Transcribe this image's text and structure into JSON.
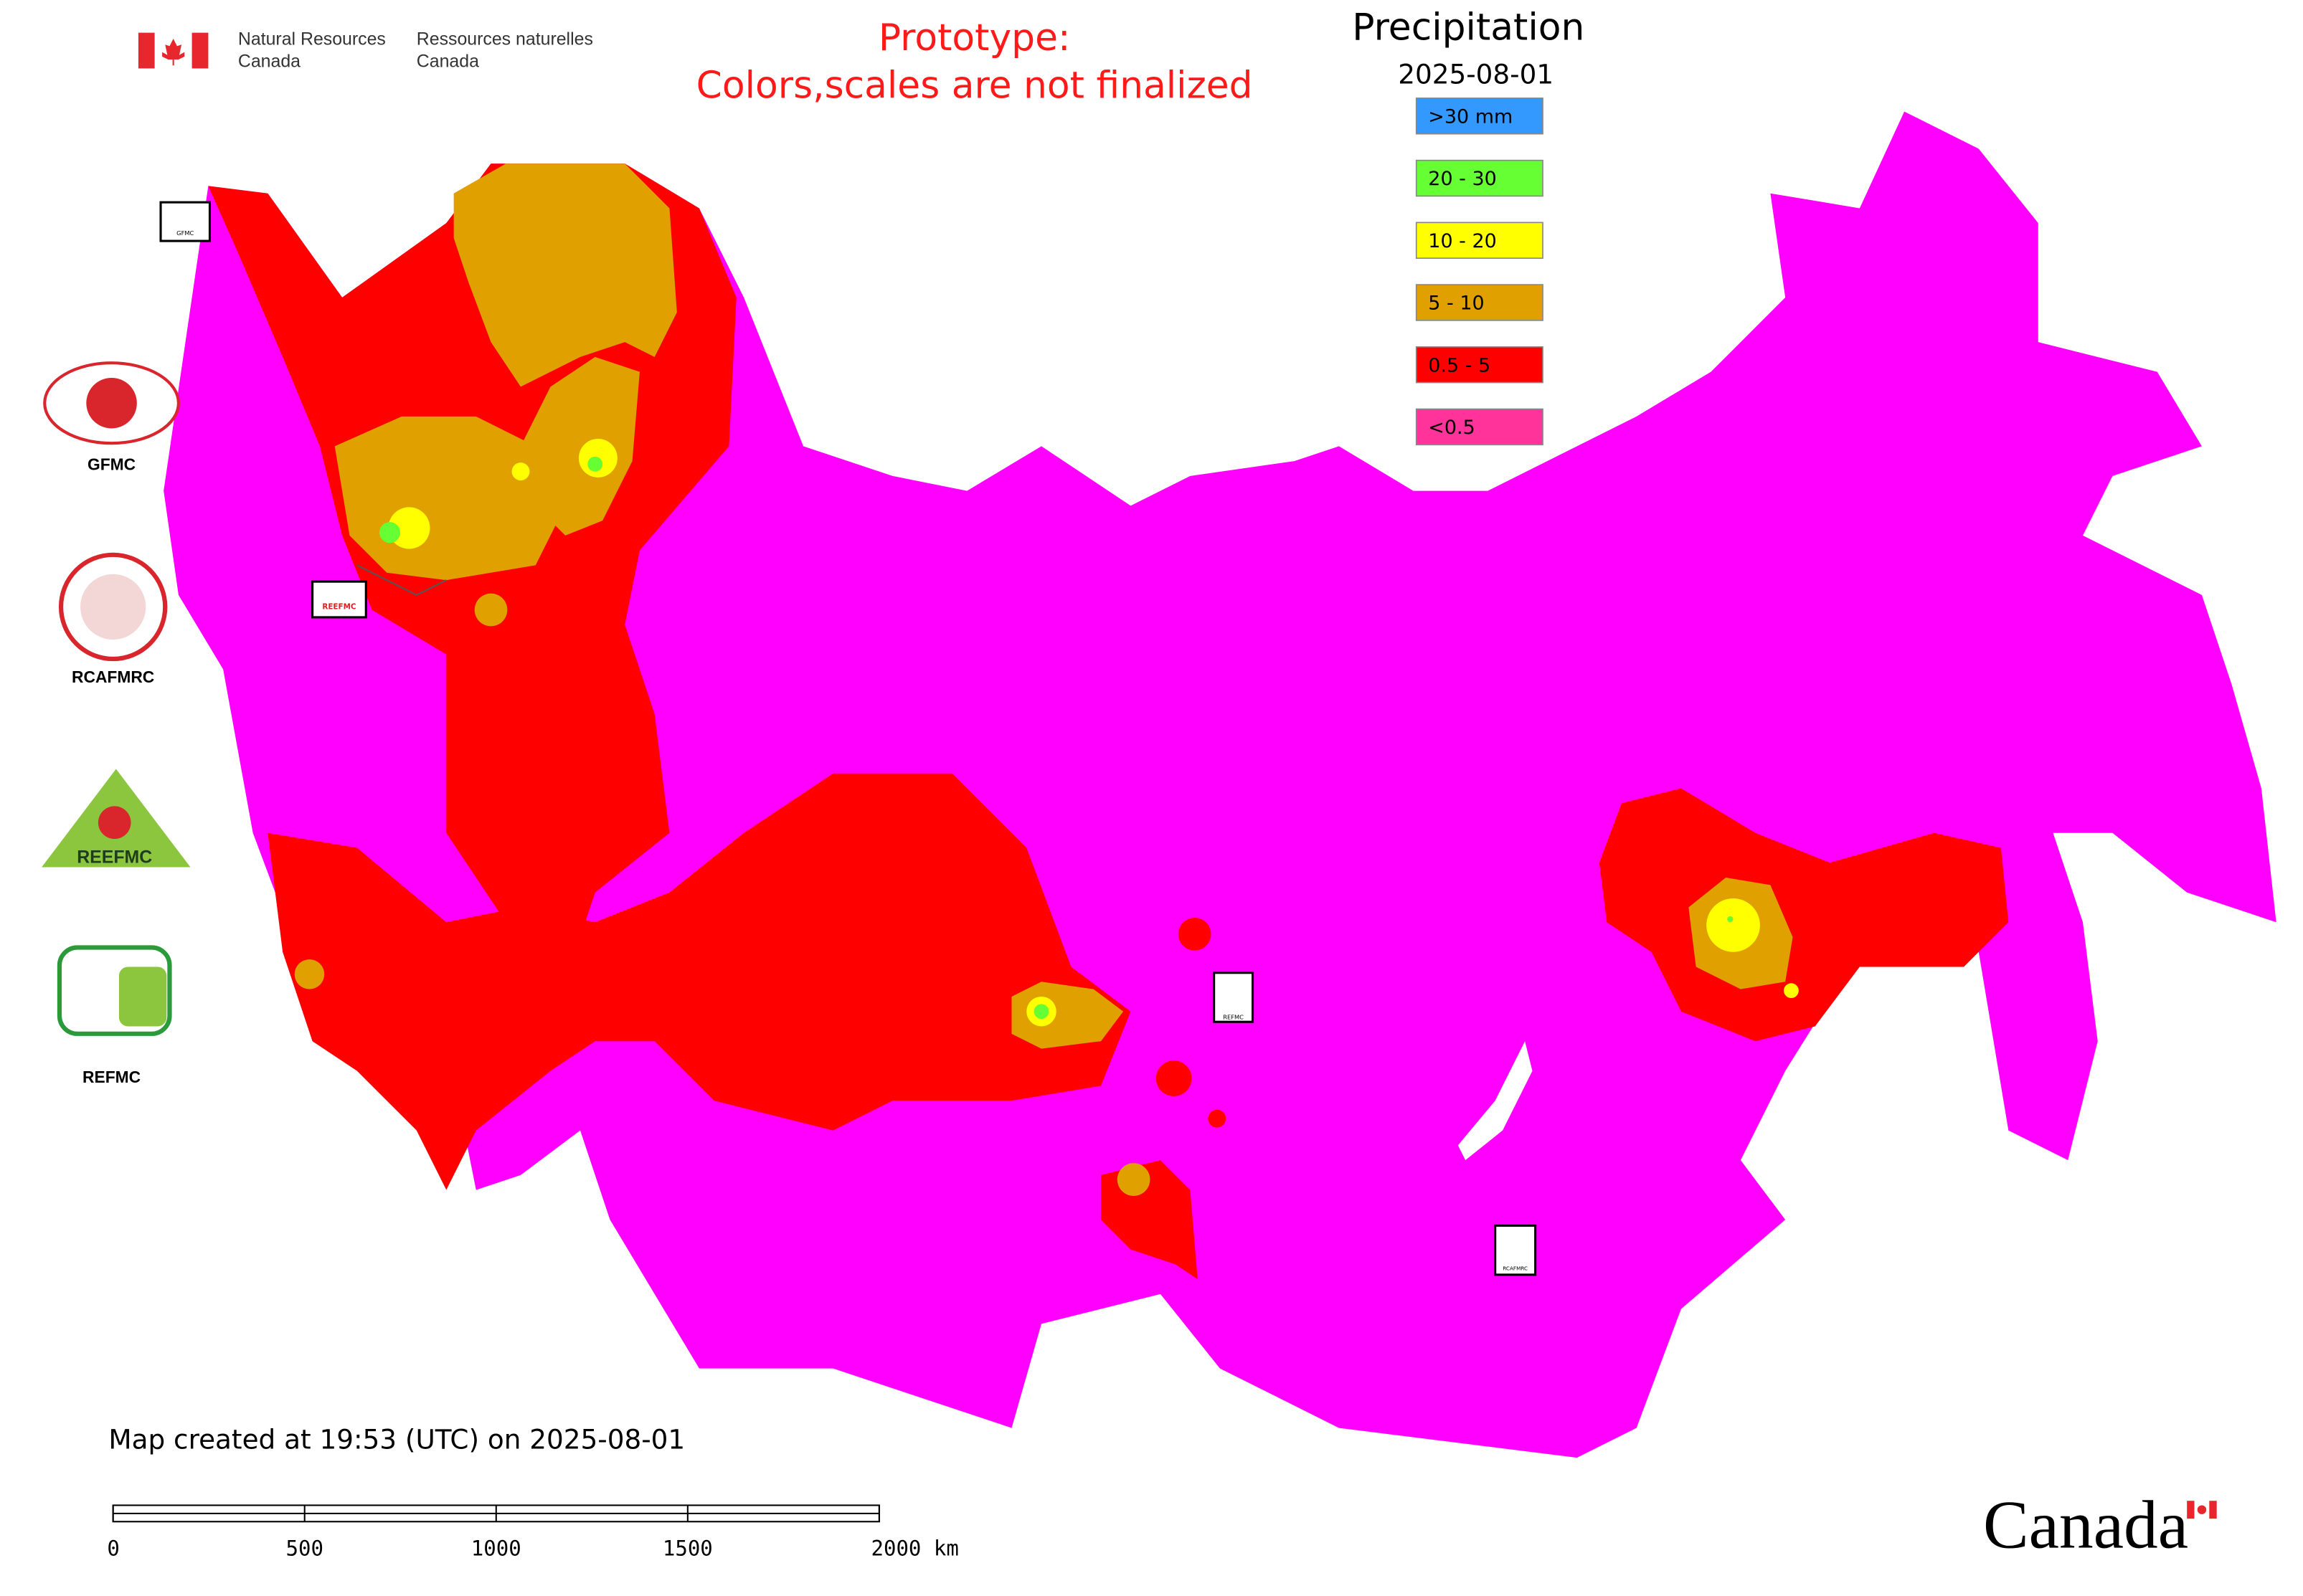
{
  "header": {
    "agency_en": [
      "Natural Resources",
      "Canada"
    ],
    "agency_fr": [
      "Ressources naturelles",
      "Canada"
    ]
  },
  "notice": [
    "Prototype:",
    "Colors,scales are not finalized"
  ],
  "legend": {
    "title": "Precipitation",
    "date": "2025-08-01",
    "items": [
      {
        "label": ">30 mm",
        "color": "#3399ff"
      },
      {
        "label": "20 - 30",
        "color": "#66ff33"
      },
      {
        "label": "10 - 20",
        "color": "#ffff00"
      },
      {
        "label": "5 - 10",
        "color": "#e0a000"
      },
      {
        "label": "0.5 - 5",
        "color": "#ff0000"
      },
      {
        "label": "<0.5",
        "color": "#ff3399"
      }
    ]
  },
  "logos": [
    "GFMC",
    "RCAFMRC",
    "REEFMC",
    "REFMC"
  ],
  "map_markers": [
    "GFMC",
    "REEFMC",
    "REFMC",
    "RCAFMRC"
  ],
  "footer": {
    "created": "Map created at 19:53 (UTC) on 2025-08-01",
    "scale_bar": {
      "ticks": [
        0,
        500,
        1000,
        1500,
        {
          "value": 2000,
          "label": "2000 km"
        }
      ]
    },
    "wordmark": "Canada"
  }
}
